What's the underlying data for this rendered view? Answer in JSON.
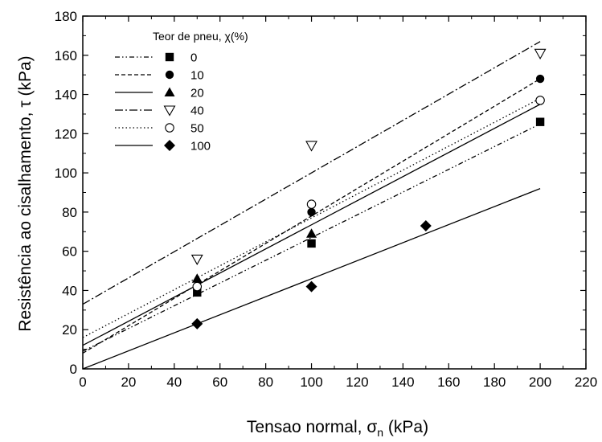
{
  "chart_data": {
    "type": "scatter",
    "xlabel": "Tensao normal, σ",
    "xlabel_sub": "n",
    "xlabel_unit": " (kPa)",
    "ylabel": "Resistência ao cisalhamento, τ (kPa)",
    "xlim": [
      0,
      220
    ],
    "ylim": [
      0,
      180
    ],
    "xticks": [
      0,
      20,
      40,
      60,
      80,
      100,
      120,
      140,
      160,
      180,
      200,
      220
    ],
    "yticks": [
      0,
      20,
      40,
      60,
      80,
      100,
      120,
      140,
      160,
      180
    ],
    "grid": false,
    "legend_title": "Teor de pneu, χ(%)",
    "legend_position": "top-left",
    "series": [
      {
        "name": "0",
        "marker": "square",
        "dash": "6,3,1.5,3,1.5,3",
        "x": [
          50,
          100,
          200
        ],
        "y": [
          39,
          64,
          126
        ],
        "fit": {
          "intercept": 9,
          "slope": 0.58
        }
      },
      {
        "name": "10",
        "marker": "circle",
        "dash": "5,3",
        "x": [
          100,
          200
        ],
        "y": [
          80,
          148
        ],
        "fit": {
          "intercept": 8,
          "slope": 0.7
        }
      },
      {
        "name": "20",
        "marker": "triangle",
        "dash": "",
        "x": [
          50,
          100
        ],
        "y": [
          46,
          69
        ],
        "fit": {
          "intercept": 12,
          "slope": 0.615
        }
      },
      {
        "name": "40",
        "marker": "triangle-open",
        "dash": "10,3,2,3",
        "x": [
          50,
          100,
          200
        ],
        "y": [
          56,
          114,
          161
        ],
        "fit": {
          "intercept": 33,
          "slope": 0.67
        }
      },
      {
        "name": "50",
        "marker": "circle-open",
        "dash": "1.5,3",
        "x": [
          50,
          100,
          200
        ],
        "y": [
          42,
          84,
          137
        ],
        "fit": {
          "intercept": 16,
          "slope": 0.61
        }
      },
      {
        "name": "100",
        "marker": "diamond",
        "dash": "",
        "x": [
          50,
          100,
          150
        ],
        "y": [
          23,
          42,
          73
        ],
        "fit": {
          "intercept": 0,
          "slope": 0.46
        }
      }
    ]
  }
}
